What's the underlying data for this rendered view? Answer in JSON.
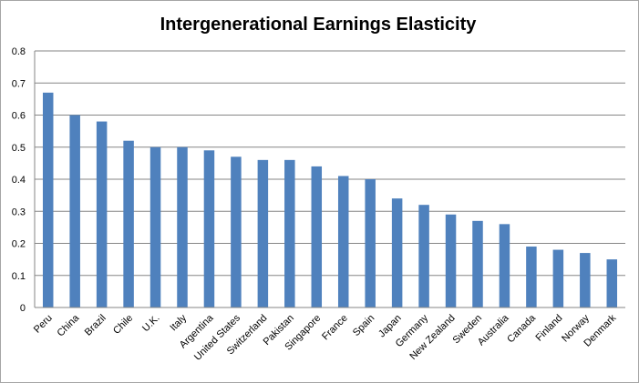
{
  "chart_data": {
    "type": "bar",
    "title": "Intergenerational Earnings Elasticity",
    "xlabel": "",
    "ylabel": "",
    "ylim": [
      0,
      0.8
    ],
    "yticks": [
      "0",
      "0.1",
      "0.2",
      "0.3",
      "0.4",
      "0.5",
      "0.6",
      "0.7",
      "0.8"
    ],
    "grid": true,
    "legend": "none",
    "bar_color": "#4f81bd",
    "categories": [
      "Peru",
      "China",
      "Brazil",
      "Chile",
      "U.K.",
      "Italy",
      "Argentina",
      "United States",
      "Switzerland",
      "Pakistan",
      "Singapore",
      "France",
      "Spain",
      "Japan",
      "Germany",
      "New Zealand",
      "Sweden",
      "Australia",
      "Canada",
      "Finland",
      "Norway",
      "Denmark"
    ],
    "values": [
      0.67,
      0.6,
      0.58,
      0.52,
      0.5,
      0.5,
      0.49,
      0.47,
      0.46,
      0.46,
      0.44,
      0.41,
      0.4,
      0.34,
      0.32,
      0.29,
      0.27,
      0.26,
      0.19,
      0.18,
      0.17,
      0.15
    ]
  }
}
